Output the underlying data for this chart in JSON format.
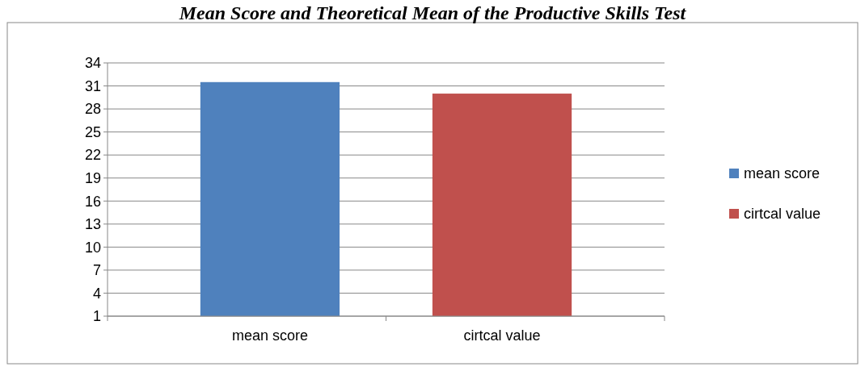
{
  "chart_data": {
    "type": "bar",
    "title": "Mean Score and Theoretical Mean of the Productive Skills Test",
    "categories": [
      "mean score",
      "cirtcal value"
    ],
    "series": [
      {
        "name": "mean score",
        "color": "#4f81bd",
        "values": [
          31.5,
          null
        ]
      },
      {
        "name": "cirtcal value",
        "color": "#c0504d",
        "values": [
          null,
          30
        ]
      }
    ],
    "stacked": true,
    "ylim": [
      1,
      34
    ],
    "yticks": [
      1,
      4,
      7,
      10,
      13,
      16,
      19,
      22,
      25,
      28,
      31,
      34
    ],
    "grid": "y",
    "legend": "right"
  }
}
